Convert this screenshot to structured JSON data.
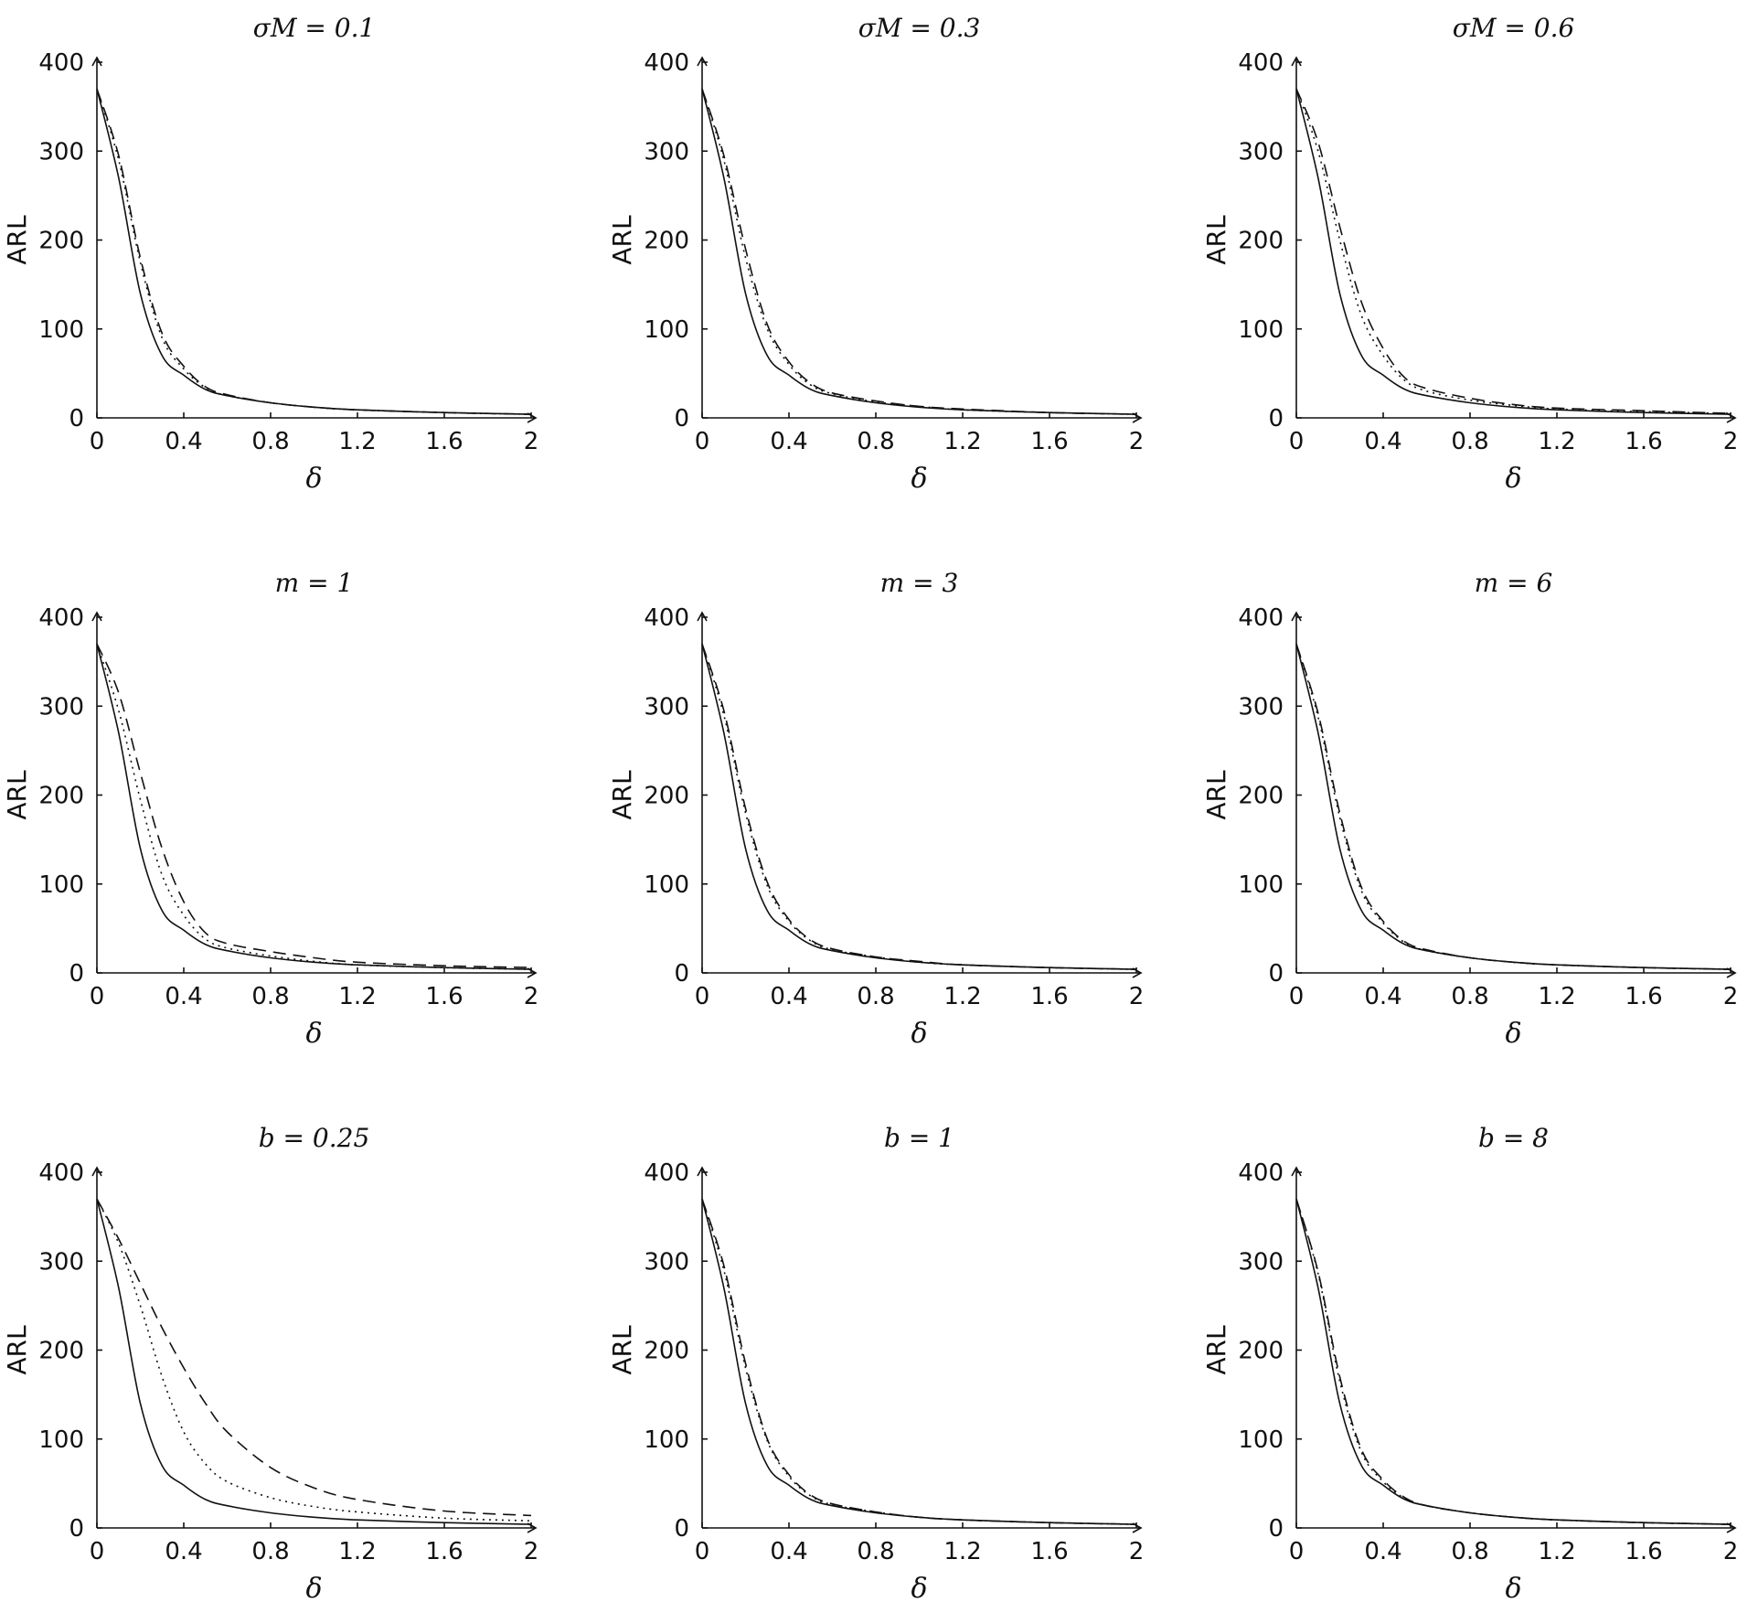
{
  "chart_data": [
    {
      "type": "line",
      "title": "σM = 0.1",
      "xlabel": "δ",
      "ylabel": "ARL",
      "xlim": [
        0,
        2
      ],
      "ylim": [
        0,
        400
      ],
      "xticks": [
        "0",
        "0.4",
        "0.8",
        "1.2",
        "1.6",
        "2"
      ],
      "yticks": [
        "0",
        "100",
        "200",
        "300",
        "400"
      ],
      "x": [
        0,
        0.1,
        0.2,
        0.3,
        0.4,
        0.5,
        0.6,
        0.8,
        1.0,
        1.2,
        1.6,
        2.0
      ],
      "series": [
        {
          "style": "solid",
          "values": [
            370,
            270,
            140,
            70,
            48,
            32,
            25,
            17,
            12,
            9,
            6,
            4
          ]
        },
        {
          "style": "dotted",
          "values": [
            370,
            290,
            175,
            90,
            55,
            34,
            25,
            17,
            12,
            9,
            6,
            4
          ]
        },
        {
          "style": "dashed",
          "values": [
            370,
            295,
            180,
            95,
            58,
            35,
            26,
            17,
            12,
            9,
            6,
            4
          ]
        }
      ]
    },
    {
      "type": "line",
      "title": "σM = 0.3",
      "xlabel": "δ",
      "ylabel": "ARL",
      "xlim": [
        0,
        2
      ],
      "ylim": [
        0,
        400
      ],
      "xticks": [
        "0",
        "0.4",
        "0.8",
        "1.2",
        "1.6",
        "2"
      ],
      "yticks": [
        "0",
        "100",
        "200",
        "300",
        "400"
      ],
      "x": [
        0,
        0.1,
        0.2,
        0.3,
        0.4,
        0.5,
        0.6,
        0.8,
        1.0,
        1.2,
        1.6,
        2.0
      ],
      "series": [
        {
          "style": "solid",
          "values": [
            370,
            270,
            140,
            70,
            48,
            32,
            25,
            17,
            12,
            9,
            6,
            4
          ]
        },
        {
          "style": "dotted",
          "values": [
            370,
            290,
            180,
            100,
            60,
            37,
            27,
            18,
            13,
            9,
            6,
            4
          ]
        },
        {
          "style": "dashed",
          "values": [
            370,
            295,
            190,
            105,
            63,
            39,
            28,
            19,
            13,
            10,
            6,
            4
          ]
        }
      ]
    },
    {
      "type": "line",
      "title": "σM = 0.6",
      "xlabel": "δ",
      "ylabel": "ARL",
      "xlim": [
        0,
        2
      ],
      "ylim": [
        0,
        400
      ],
      "xticks": [
        "0",
        "0.4",
        "0.8",
        "1.2",
        "1.6",
        "2"
      ],
      "yticks": [
        "0",
        "100",
        "200",
        "300",
        "400"
      ],
      "x": [
        0,
        0.1,
        0.2,
        0.3,
        0.4,
        0.5,
        0.6,
        0.8,
        1.0,
        1.2,
        1.6,
        2.0
      ],
      "series": [
        {
          "style": "solid",
          "values": [
            370,
            270,
            140,
            70,
            48,
            32,
            25,
            17,
            12,
            9,
            6,
            4
          ]
        },
        {
          "style": "dotted",
          "values": [
            370,
            300,
            200,
            115,
            70,
            42,
            30,
            20,
            14,
            10,
            7,
            5
          ]
        },
        {
          "style": "dashed",
          "values": [
            370,
            310,
            215,
            130,
            78,
            45,
            33,
            22,
            15,
            11,
            8,
            5
          ]
        }
      ]
    },
    {
      "type": "line",
      "title": "m = 1",
      "xlabel": "δ",
      "ylabel": "ARL",
      "xlim": [
        0,
        2
      ],
      "ylim": [
        0,
        400
      ],
      "xticks": [
        "0",
        "0.4",
        "0.8",
        "1.2",
        "1.6",
        "2"
      ],
      "yticks": [
        "0",
        "100",
        "200",
        "300",
        "400"
      ],
      "x": [
        0,
        0.1,
        0.2,
        0.3,
        0.4,
        0.5,
        0.6,
        0.8,
        1.0,
        1.2,
        1.6,
        2.0
      ],
      "series": [
        {
          "style": "solid",
          "values": [
            370,
            270,
            140,
            70,
            48,
            32,
            25,
            17,
            12,
            9,
            6,
            4
          ]
        },
        {
          "style": "dotted",
          "values": [
            370,
            295,
            195,
            110,
            65,
            38,
            28,
            19,
            13,
            9,
            6,
            4
          ]
        },
        {
          "style": "dashed",
          "values": [
            370,
            315,
            225,
            140,
            80,
            45,
            33,
            24,
            17,
            12,
            8,
            6
          ]
        }
      ]
    },
    {
      "type": "line",
      "title": "m = 3",
      "xlabel": "δ",
      "ylabel": "ARL",
      "xlim": [
        0,
        2
      ],
      "ylim": [
        0,
        400
      ],
      "xticks": [
        "0",
        "0.4",
        "0.8",
        "1.2",
        "1.6",
        "2"
      ],
      "yticks": [
        "0",
        "100",
        "200",
        "300",
        "400"
      ],
      "x": [
        0,
        0.1,
        0.2,
        0.3,
        0.4,
        0.5,
        0.6,
        0.8,
        1.0,
        1.2,
        1.6,
        2.0
      ],
      "series": [
        {
          "style": "solid",
          "values": [
            370,
            270,
            140,
            70,
            48,
            32,
            25,
            17,
            12,
            9,
            6,
            4
          ]
        },
        {
          "style": "dotted",
          "values": [
            370,
            290,
            180,
            98,
            58,
            36,
            26,
            18,
            12,
            9,
            6,
            4
          ]
        },
        {
          "style": "dashed",
          "values": [
            370,
            295,
            185,
            102,
            60,
            37,
            27,
            18,
            13,
            9,
            6,
            4
          ]
        }
      ]
    },
    {
      "type": "line",
      "title": "m = 6",
      "xlabel": "δ",
      "ylabel": "ARL",
      "xlim": [
        0,
        2
      ],
      "ylim": [
        0,
        400
      ],
      "xticks": [
        "0",
        "0.4",
        "0.8",
        "1.2",
        "1.6",
        "2"
      ],
      "yticks": [
        "0",
        "100",
        "200",
        "300",
        "400"
      ],
      "x": [
        0,
        0.1,
        0.2,
        0.3,
        0.4,
        0.5,
        0.6,
        0.8,
        1.0,
        1.2,
        1.6,
        2.0
      ],
      "series": [
        {
          "style": "solid",
          "values": [
            370,
            270,
            140,
            70,
            48,
            32,
            25,
            17,
            12,
            9,
            6,
            4
          ]
        },
        {
          "style": "dotted",
          "values": [
            370,
            288,
            175,
            92,
            56,
            34,
            25,
            17,
            12,
            9,
            6,
            4
          ]
        },
        {
          "style": "dashed",
          "values": [
            370,
            292,
            180,
            96,
            58,
            35,
            26,
            17,
            12,
            9,
            6,
            4
          ]
        }
      ]
    },
    {
      "type": "line",
      "title": "b = 0.25",
      "xlabel": "δ",
      "ylabel": "ARL",
      "xlim": [
        0,
        2
      ],
      "ylim": [
        0,
        400
      ],
      "xticks": [
        "0",
        "0.4",
        "0.8",
        "1.2",
        "1.6",
        "2"
      ],
      "yticks": [
        "0",
        "100",
        "200",
        "300",
        "400"
      ],
      "x": [
        0,
        0.1,
        0.2,
        0.3,
        0.4,
        0.5,
        0.6,
        0.8,
        1.0,
        1.2,
        1.6,
        2.0
      ],
      "series": [
        {
          "style": "solid",
          "values": [
            370,
            270,
            140,
            70,
            48,
            32,
            25,
            17,
            12,
            9,
            6,
            4
          ]
        },
        {
          "style": "dotted",
          "values": [
            370,
            320,
            250,
            170,
            108,
            72,
            52,
            34,
            24,
            18,
            11,
            8
          ]
        },
        {
          "style": "dashed",
          "values": [
            370,
            325,
            275,
            225,
            180,
            140,
            108,
            68,
            45,
            32,
            19,
            14
          ]
        }
      ]
    },
    {
      "type": "line",
      "title": "b = 1",
      "xlabel": "δ",
      "ylabel": "ARL",
      "xlim": [
        0,
        2
      ],
      "ylim": [
        0,
        400
      ],
      "xticks": [
        "0",
        "0.4",
        "0.8",
        "1.2",
        "1.6",
        "2"
      ],
      "yticks": [
        "0",
        "100",
        "200",
        "300",
        "400"
      ],
      "x": [
        0,
        0.1,
        0.2,
        0.3,
        0.4,
        0.5,
        0.6,
        0.8,
        1.0,
        1.2,
        1.6,
        2.0
      ],
      "series": [
        {
          "style": "solid",
          "values": [
            370,
            270,
            140,
            70,
            48,
            32,
            25,
            17,
            12,
            9,
            6,
            4
          ]
        },
        {
          "style": "dotted",
          "values": [
            370,
            290,
            180,
            98,
            58,
            36,
            26,
            18,
            12,
            9,
            6,
            4
          ]
        },
        {
          "style": "dashed",
          "values": [
            370,
            295,
            185,
            100,
            60,
            37,
            27,
            18,
            12,
            9,
            6,
            4
          ]
        }
      ]
    },
    {
      "type": "line",
      "title": "b = 8",
      "xlabel": "δ",
      "ylabel": "ARL",
      "xlim": [
        0,
        2
      ],
      "ylim": [
        0,
        400
      ],
      "xticks": [
        "0",
        "0.4",
        "0.8",
        "1.2",
        "1.6",
        "2"
      ],
      "yticks": [
        "0",
        "100",
        "200",
        "300",
        "400"
      ],
      "x": [
        0,
        0.1,
        0.2,
        0.3,
        0.4,
        0.5,
        0.6,
        0.8,
        1.0,
        1.2,
        1.6,
        2.0
      ],
      "series": [
        {
          "style": "solid",
          "values": [
            370,
            270,
            140,
            70,
            48,
            32,
            25,
            17,
            12,
            9,
            6,
            4
          ]
        },
        {
          "style": "dotted",
          "values": [
            370,
            286,
            165,
            85,
            52,
            33,
            25,
            17,
            12,
            9,
            6,
            4
          ]
        },
        {
          "style": "dashed",
          "values": [
            370,
            288,
            170,
            88,
            54,
            34,
            25,
            17,
            12,
            9,
            6,
            4
          ]
        }
      ]
    }
  ]
}
